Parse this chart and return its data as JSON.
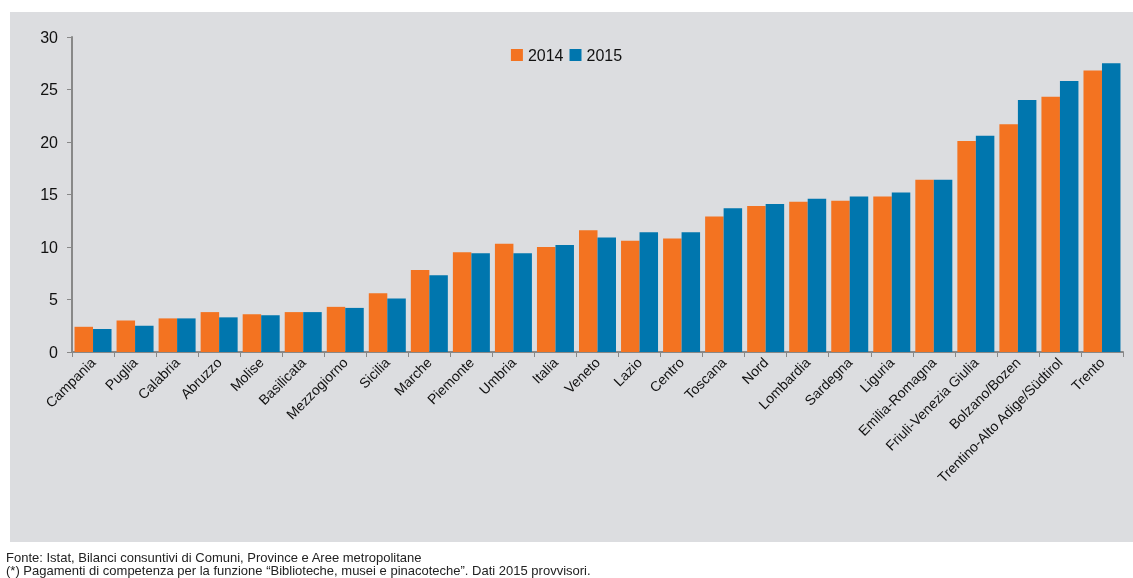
{
  "chart_data": {
    "type": "bar",
    "categories": [
      "Campania",
      "Puglia",
      "Calabria",
      "Abruzzo",
      "Molise",
      "Basilicata",
      "Mezzogiorno",
      "Sicilia",
      "Marche",
      "Piemonte",
      "Umbria",
      "Italia",
      "Veneto",
      "Lazio",
      "Centro",
      "Toscana",
      "Nord",
      "Lombardia",
      "Sardegna",
      "Liguria",
      "Emilia-Romagna",
      "Friuli-Venezia Giulia",
      "Bolzano/Bozen",
      "Trentino-Alto Adige/Südtirol",
      "Trento"
    ],
    "series": [
      {
        "name": "2014",
        "color": "#f37321",
        "values": [
          2.4,
          3.0,
          3.2,
          3.8,
          3.6,
          3.8,
          4.3,
          5.6,
          7.8,
          9.5,
          10.3,
          10.0,
          11.6,
          10.6,
          10.8,
          12.9,
          13.9,
          14.3,
          14.4,
          14.8,
          16.4,
          20.1,
          21.7,
          24.3,
          26.8
        ]
      },
      {
        "name": "2015",
        "color": "#0076ae",
        "values": [
          2.2,
          2.5,
          3.2,
          3.3,
          3.5,
          3.8,
          4.2,
          5.1,
          7.3,
          9.4,
          9.4,
          10.2,
          10.9,
          11.4,
          11.4,
          13.7,
          14.1,
          14.6,
          14.8,
          15.2,
          16.4,
          20.6,
          24.0,
          25.8,
          27.5
        ]
      }
    ],
    "ylim": [
      0,
      30
    ],
    "yticks": [
      0,
      5,
      10,
      15,
      20,
      25,
      30
    ],
    "legend": "top",
    "annotations": [
      "Fonte: Istat, Bilanci consuntivi di Comuni, Province e Aree metropolitane",
      "(*) Pagamenti di competenza per la funzione “Biblioteche, musei e pinacoteche”. Dati 2015 provvisori."
    ]
  }
}
